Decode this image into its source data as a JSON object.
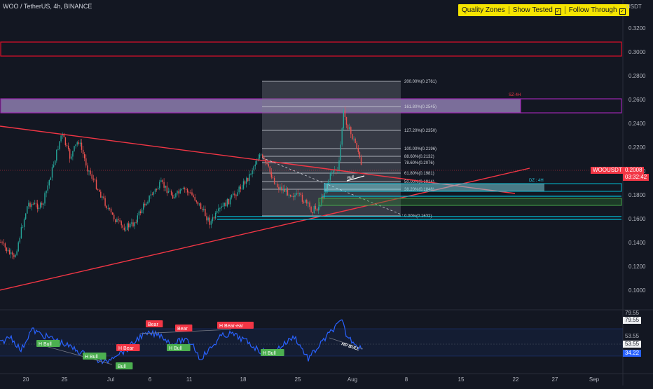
{
  "header": {
    "title": "WOO / TetherUS, 4h, BINANCE",
    "currency": "USDT"
  },
  "toolbar": {
    "quality_zones": "Quality Zones",
    "show_tested": "Show Tested",
    "follow_through": "Follow Through"
  },
  "colors": {
    "background": "#131722",
    "up_candle": "#26a69a",
    "down_candle": "#ef5350",
    "supply_zone": "#9c27b0",
    "resistance_zone": "#e0102a",
    "demand_zone": "#00bcd4",
    "trendline": "#f23645",
    "fib": "#d1d4dc",
    "oscillator": "#2962ff",
    "toolbar": "#f5e400"
  },
  "price_axis": {
    "labels": [
      "0.3200",
      "0.3000",
      "0.2800",
      "0.2600",
      "0.2400",
      "0.2200",
      "0.2000",
      "0.1800",
      "0.1600",
      "0.1400",
      "0.1200",
      "0.1000"
    ],
    "current_symbol": "WOOUSDT",
    "current_price": "0.2008",
    "countdown": "03:32:42"
  },
  "time_axis": {
    "labels": [
      "20",
      "25",
      "Jul",
      "6",
      "11",
      "18",
      "25",
      "Aug",
      "8",
      "15",
      "22",
      "27",
      "Sep"
    ]
  },
  "zones": {
    "supply_label": "SZ-4H",
    "demand_label": "DZ : 4H"
  },
  "fib_levels": [
    {
      "ratio": "200.00%",
      "price": "0.2761"
    },
    {
      "ratio": "161.80%",
      "price": "0.2545"
    },
    {
      "ratio": "127.20%",
      "price": "0.2350"
    },
    {
      "ratio": "100.00%",
      "price": "0.2196"
    },
    {
      "ratio": "88.60%",
      "price": "0.2132"
    },
    {
      "ratio": "78.60%",
      "price": "0.2076"
    },
    {
      "ratio": "61.80%",
      "price": "0.1981"
    },
    {
      "ratio": "50.00%",
      "price": "0.1914"
    },
    {
      "ratio": "38.20%",
      "price": "0.1848"
    },
    {
      "ratio": "0.00%",
      "price": "0.1632"
    }
  ],
  "chart_annotations": {
    "bull": "Bull"
  },
  "oscillator": {
    "axis_labels": [
      "79.55",
      "53.55"
    ],
    "tags": [
      "79.55",
      "53.55",
      "53.55",
      "34.22"
    ],
    "labels": {
      "h_bull_1": "H Bull",
      "h_bull_2": "H Bull",
      "h_bull_3": "H Bull",
      "h_bull_4": "H Bull",
      "h_bull_5": "H Bull",
      "bull": "Bull",
      "bear_1": "Bear",
      "bear_2": "Bear",
      "h_bear_1": "H Bear",
      "h_bear_2": "H Bear-ear",
      "hd_bull": "HD BULL"
    }
  }
}
